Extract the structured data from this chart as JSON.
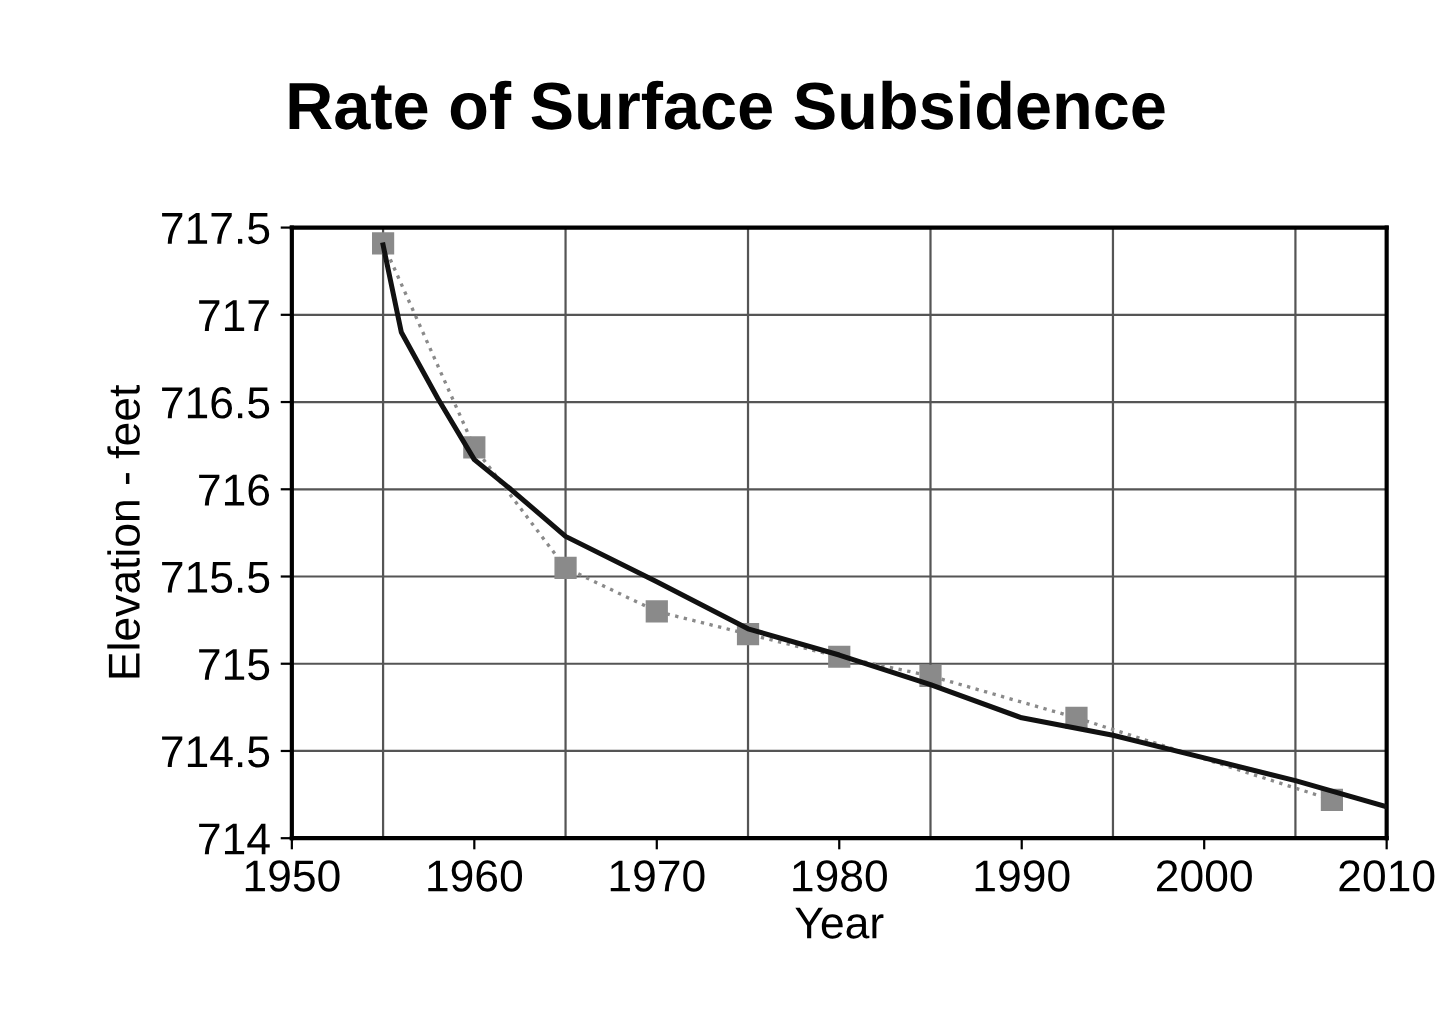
{
  "chart_data": {
    "type": "line",
    "title": "Rate of Surface Subsidence",
    "xlabel": "Year",
    "ylabel": "Elevation - feet",
    "series": [
      {
        "color": "#8a8a8a",
        "marker": "square",
        "line_style": "dotted",
        "x": [
          1955,
          1960,
          1965,
          1970,
          1975,
          1980,
          1985,
          1993,
          2007
        ],
        "values": [
          717.41,
          716.24,
          715.55,
          715.3,
          715.17,
          715.04,
          714.93,
          714.69,
          714.22
        ]
      },
      {
        "color": "#111111",
        "marker": "none",
        "line_style": "solid",
        "x": [
          1955,
          1956,
          1958,
          1960,
          1962,
          1965,
          1970,
          1975,
          1980,
          1985,
          1990,
          1995,
          2000,
          2005,
          2010
        ],
        "values": [
          717.4,
          716.9,
          716.52,
          716.17,
          716.0,
          715.73,
          715.47,
          715.2,
          715.05,
          714.88,
          714.69,
          714.59,
          714.46,
          714.33,
          714.18
        ]
      }
    ],
    "xlim": [
      1950,
      2010
    ],
    "xticks": [
      1950,
      1960,
      1970,
      1980,
      1990,
      2000,
      2010
    ],
    "ylim": [
      714,
      717.5
    ],
    "yticks": [
      714,
      714.5,
      715,
      715.5,
      716,
      716.5,
      717,
      717.5
    ],
    "grid": "y",
    "legend": false,
    "ref_lines": [
      {
        "axis": "x",
        "value": 1955,
        "color": "#555555"
      },
      {
        "axis": "x",
        "value": 1965,
        "color": "#555555"
      },
      {
        "axis": "x",
        "value": 1975,
        "color": "#555555"
      },
      {
        "axis": "x",
        "value": 1985,
        "color": "#555555"
      },
      {
        "axis": "x",
        "value": 1995,
        "color": "#555555"
      },
      {
        "axis": "x",
        "value": 2005,
        "color": "#555555"
      }
    ]
  }
}
